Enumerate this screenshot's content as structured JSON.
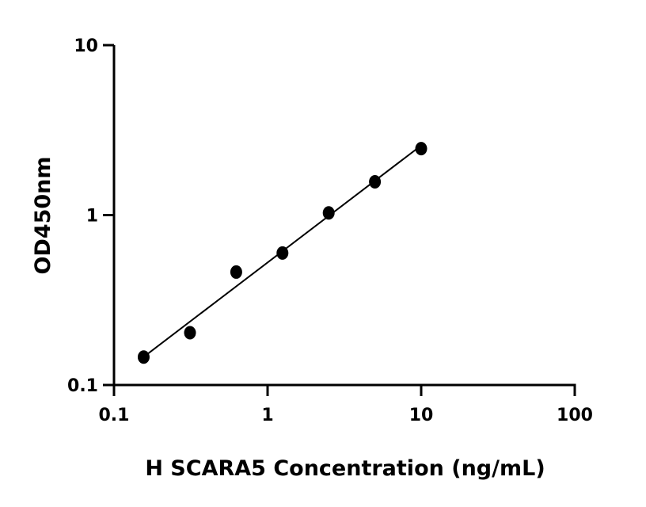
{
  "chart_data": {
    "type": "scatter",
    "title": "",
    "xlabel": "H SCARA5 Concentration (ng/mL)",
    "ylabel": "OD450nm",
    "x_scale": "log",
    "y_scale": "log",
    "xlim": [
      0.1,
      100
    ],
    "ylim": [
      0.1,
      10
    ],
    "x_ticks": [
      "0.1",
      "1",
      "10",
      "100"
    ],
    "y_ticks": [
      "0.1",
      "1",
      "10"
    ],
    "grid": false,
    "marker_color": "#000000",
    "fit_line": "linear regression on log-log",
    "points": [
      {
        "x": 0.156,
        "y": 0.146
      },
      {
        "x": 0.3125,
        "y": 0.203
      },
      {
        "x": 0.625,
        "y": 0.462
      },
      {
        "x": 1.25,
        "y": 0.598
      },
      {
        "x": 2.5,
        "y": 1.03
      },
      {
        "x": 5,
        "y": 1.57
      },
      {
        "x": 10,
        "y": 2.46
      }
    ]
  }
}
